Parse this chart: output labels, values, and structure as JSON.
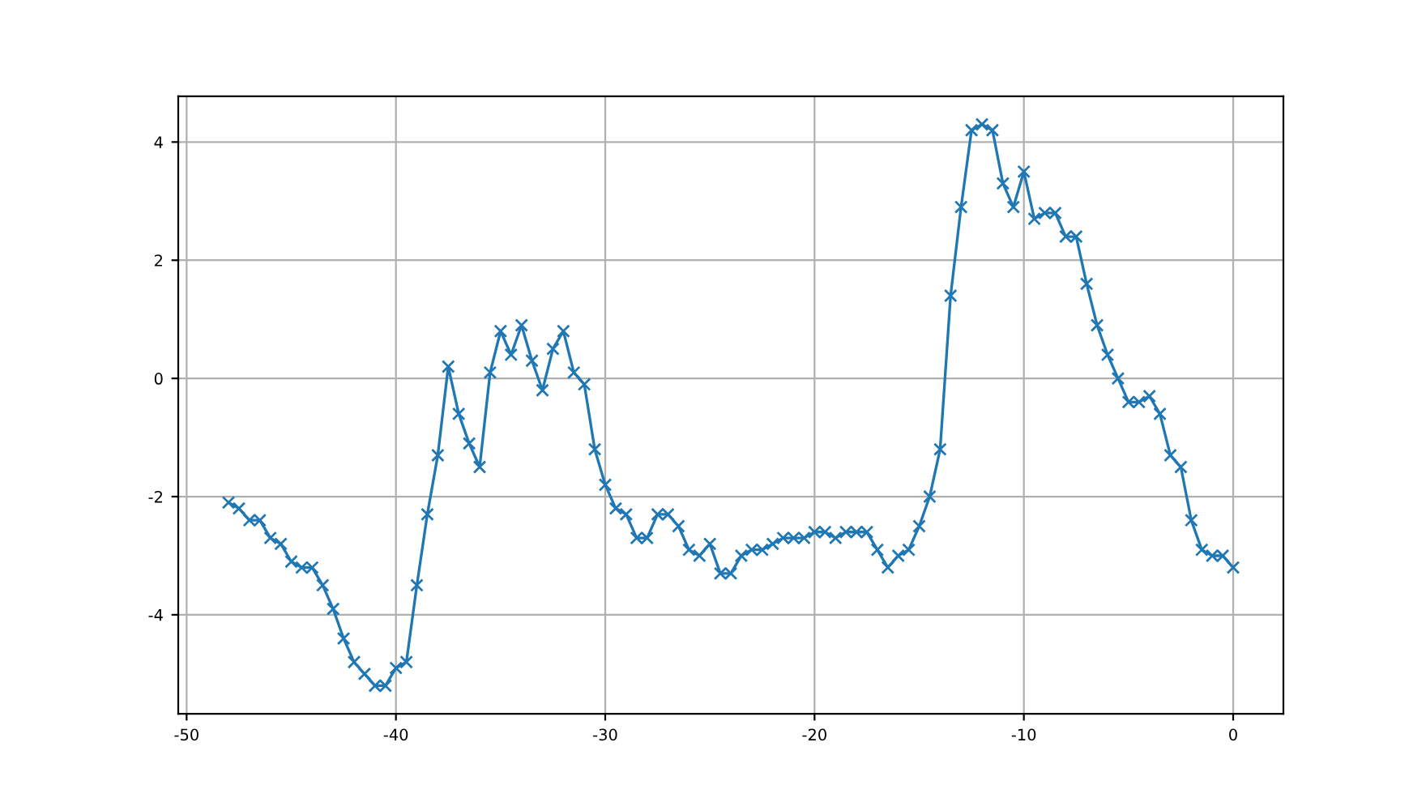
{
  "chart_data": {
    "type": "line",
    "marker": "cross",
    "grid": true,
    "x": [
      -48,
      -47.5,
      -47,
      -46.5,
      -46,
      -45.5,
      -45,
      -44.5,
      -44,
      -43.5,
      -43,
      -42.5,
      -42,
      -41.5,
      -41,
      -40.5,
      -40,
      -39.5,
      -39,
      -38.5,
      -38,
      -37.5,
      -37,
      -36.5,
      -36,
      -35.5,
      -35,
      -34.5,
      -34,
      -33.5,
      -33,
      -32.5,
      -32,
      -31.5,
      -31,
      -30.5,
      -30,
      -29.5,
      -29,
      -28.5,
      -28,
      -27.5,
      -27,
      -26.5,
      -26,
      -25.5,
      -25,
      -24.5,
      -24,
      -23.5,
      -23,
      -22.5,
      -22,
      -21.5,
      -21,
      -20.5,
      -20,
      -19.5,
      -19,
      -18.5,
      -18,
      -17.5,
      -17,
      -16.5,
      -16,
      -15.5,
      -15,
      -14.5,
      -14,
      -13.5,
      -13,
      -12.5,
      -12,
      -11.5,
      -11,
      -10.5,
      -10,
      -9.5,
      -9,
      -8.5,
      -8,
      -7.5,
      -7,
      -6.5,
      -6,
      -5.5,
      -5,
      -4.5,
      -4,
      -3.5,
      -3,
      -2.5,
      -2,
      -1.5,
      -1,
      -0.5,
      0
    ],
    "series": [
      {
        "color": "#1f77b4",
        "values": [
          -2.1,
          -2.2,
          -2.4,
          -2.4,
          -2.7,
          -2.8,
          -3.1,
          -3.2,
          -3.2,
          -3.5,
          -3.9,
          -4.4,
          -4.8,
          -5.0,
          -5.2,
          -5.2,
          -4.9,
          -4.8,
          -3.5,
          -2.3,
          -1.3,
          0.2,
          -0.6,
          -1.1,
          -1.5,
          0.1,
          0.8,
          0.4,
          0.9,
          0.3,
          -0.2,
          0.5,
          0.8,
          0.1,
          -0.1,
          -1.2,
          -1.8,
          -2.2,
          -2.3,
          -2.7,
          -2.7,
          -2.3,
          -2.3,
          -2.5,
          -2.9,
          -3.0,
          -2.8,
          -3.3,
          -3.3,
          -3.0,
          -2.9,
          -2.9,
          -2.8,
          -2.7,
          -2.7,
          -2.7,
          -2.6,
          -2.6,
          -2.7,
          -2.6,
          -2.6,
          -2.6,
          -2.9,
          -3.2,
          -3.0,
          -2.9,
          -2.5,
          -2.0,
          -1.2,
          1.4,
          2.9,
          4.2,
          4.3,
          4.2,
          3.3,
          2.9,
          3.5,
          2.7,
          2.8,
          2.8,
          2.4,
          2.4,
          1.6,
          0.9,
          0.4,
          0.0,
          -0.4,
          -0.4,
          -0.3,
          -0.6,
          -1.3,
          -1.5,
          -2.4,
          -2.9,
          -3.0,
          -3.0,
          -3.2
        ]
      }
    ],
    "xlim": [
      -50.4,
      2.4
    ],
    "ylim": [
      -5.675,
      4.775
    ],
    "xticks": [
      -50,
      -40,
      -30,
      -20,
      -10,
      0
    ],
    "yticks": [
      -4,
      -2,
      0,
      2,
      4
    ]
  }
}
